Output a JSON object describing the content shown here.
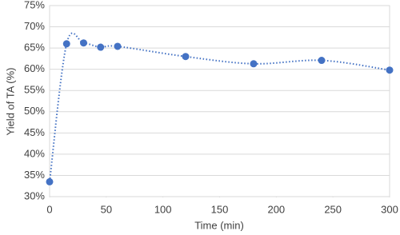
{
  "chart_data": {
    "type": "scatter",
    "x_label": "Time (min)",
    "y_label": "Yield of TA (%)",
    "x": [
      0,
      15,
      30,
      45,
      60,
      120,
      180,
      240,
      300
    ],
    "series": [
      {
        "color": "#4472c4",
        "values": [
          33.5,
          66,
          66.2,
          65.2,
          65.4,
          63,
          61.3,
          62.1,
          59.8
        ]
      }
    ],
    "smooth_dotted_line": true,
    "xlim": [
      0,
      300
    ],
    "xticks": [
      0,
      50,
      100,
      150,
      200,
      250,
      300
    ],
    "ylim": [
      30,
      75
    ],
    "yticks": [
      {
        "value": 30,
        "label": "30%"
      },
      {
        "value": 35,
        "label": "35%"
      },
      {
        "value": 40,
        "label": "40%"
      },
      {
        "value": 45,
        "label": "45%"
      },
      {
        "value": 50,
        "label": "50%"
      },
      {
        "value": 55,
        "label": "55%"
      },
      {
        "value": 60,
        "label": "60%"
      },
      {
        "value": 65,
        "label": "65%"
      },
      {
        "value": 70,
        "label": "70%"
      },
      {
        "value": 75,
        "label": "75%"
      }
    ],
    "grid": true
  }
}
